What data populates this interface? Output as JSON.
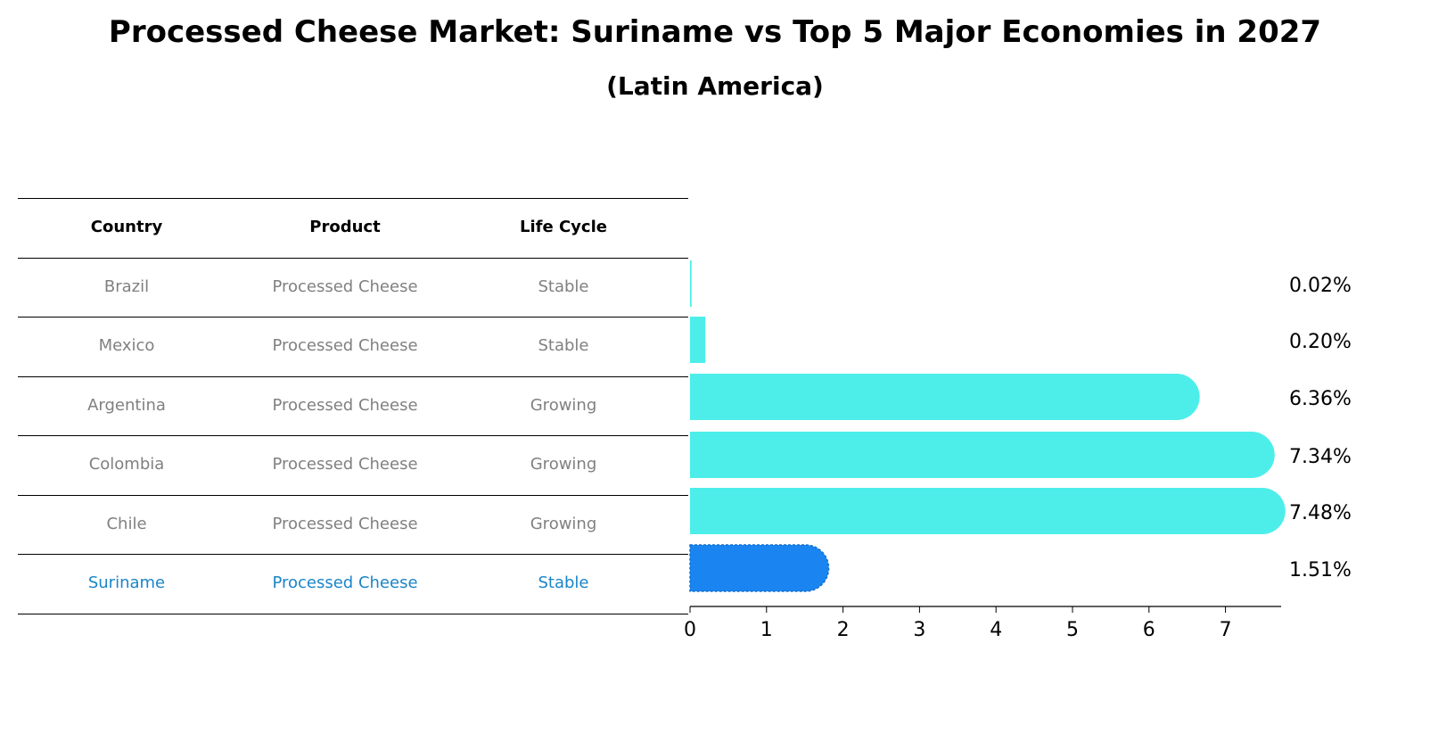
{
  "title": "Processed Cheese Market: Suriname vs Top 5 Major Economies in 2027",
  "subtitle": "(Latin America)",
  "table": {
    "headers": [
      "Country",
      "Product",
      "Life Cycle"
    ],
    "rows": [
      [
        "Brazil",
        "Processed Cheese",
        "Stable"
      ],
      [
        "Mexico",
        "Processed Cheese",
        "Stable"
      ],
      [
        "Argentina",
        "Processed Cheese",
        "Growing"
      ],
      [
        "Colombia",
        "Processed Cheese",
        "Growing"
      ],
      [
        "Chile",
        "Processed Cheese",
        "Growing"
      ],
      [
        "Suriname",
        "Processed Cheese",
        "Stable"
      ]
    ],
    "highlight_row": 5
  },
  "colors": {
    "bar": "#4deeea",
    "highlight_bar": "#1a85f0",
    "muted_text": "#808080",
    "highlight_text": "#1a85c8"
  },
  "chart_data": {
    "type": "bar",
    "orientation": "horizontal",
    "categories": [
      "Brazil",
      "Mexico",
      "Argentina",
      "Colombia",
      "Chile",
      "Suriname"
    ],
    "values": [
      0.02,
      0.2,
      6.36,
      7.34,
      7.48,
      1.51
    ],
    "value_labels": [
      "0.02%",
      "0.20%",
      "6.36%",
      "7.34%",
      "7.48%",
      "1.51%"
    ],
    "highlight": "Suriname",
    "xlim": [
      0,
      7.85
    ],
    "xticks": [
      0,
      1,
      2,
      3,
      4,
      5,
      6,
      7
    ],
    "grid": false
  }
}
